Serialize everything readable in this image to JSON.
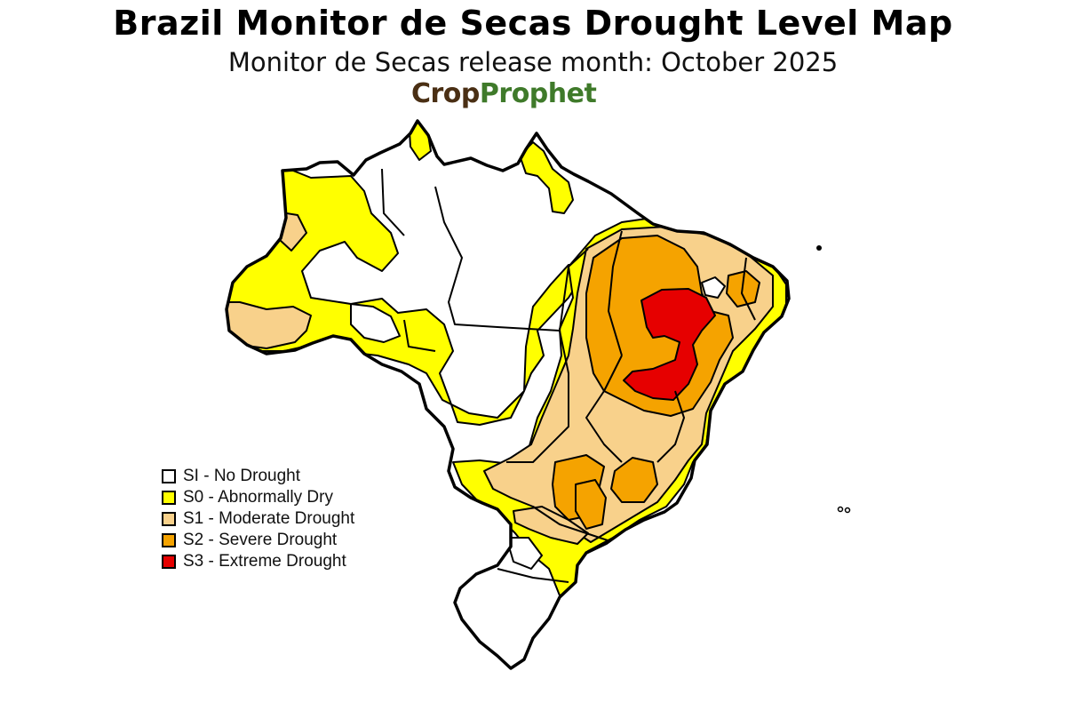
{
  "title": "Brazil Monitor de Secas Drought Level Map",
  "subtitle": "Monitor de Secas release month: October 2025",
  "logo": {
    "part1": "Crop",
    "part2": "Prophet"
  },
  "colors": {
    "SI": "#ffffff",
    "S0": "#ffff00",
    "S1": "#f8d18b",
    "S2": "#f5a300",
    "S3": "#e60000",
    "outline": "#000000"
  },
  "legend": [
    {
      "key": "SI",
      "label": "SI - No Drought",
      "color": "#ffffff"
    },
    {
      "key": "S0",
      "label": "S0 - Abnormally Dry",
      "color": "#ffff00"
    },
    {
      "key": "S1",
      "label": "S1 - Moderate Drought",
      "color": "#f8d18b"
    },
    {
      "key": "S2",
      "label": "S2 - Severe Drought",
      "color": "#f5a300"
    },
    {
      "key": "S3",
      "label": "S3 - Extreme Drought",
      "color": "#e60000"
    }
  ]
}
